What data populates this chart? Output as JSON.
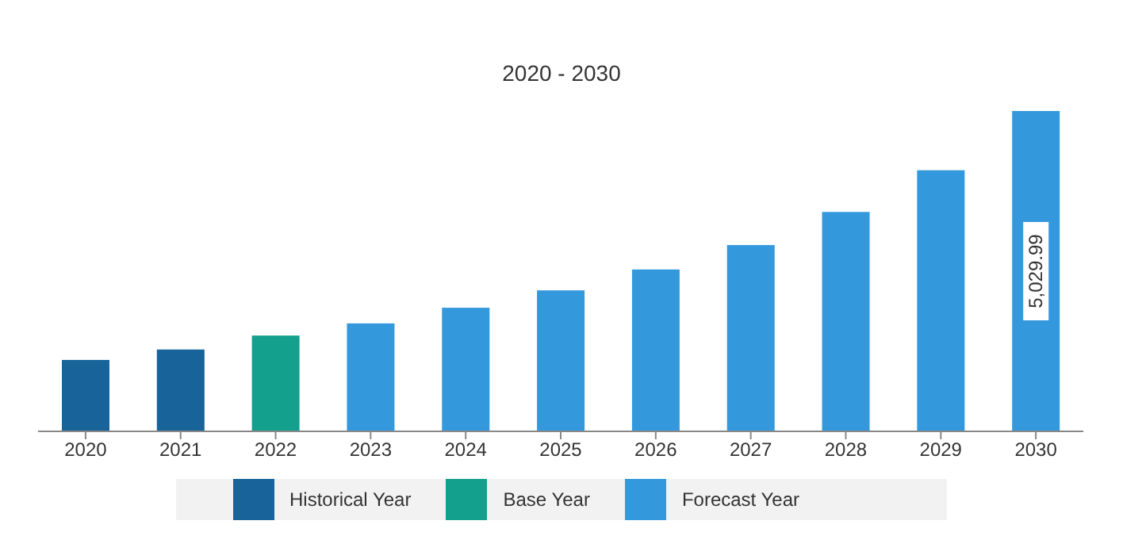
{
  "chart_data": {
    "type": "bar",
    "title": "2020 - 2030",
    "categories": [
      "2020",
      "2021",
      "2022",
      "2023",
      "2024",
      "2025",
      "2026",
      "2027",
      "2028",
      "2029",
      "2030"
    ],
    "stacked": true,
    "legend": "bottom",
    "grid": false,
    "series": [
      {
        "name": "Historical Year",
        "color": "#17639a",
        "values": [
          1121,
          1285,
          null,
          null,
          null,
          null,
          null,
          null,
          null,
          null,
          null
        ]
      },
      {
        "name": "Base Year",
        "color": "#13a08c",
        "values": [
          null,
          null,
          1504,
          null,
          null,
          null,
          null,
          null,
          null,
          null,
          null
        ]
      },
      {
        "name": "Forecast Year",
        "color": "#3499dc",
        "values": [
          null,
          null,
          null,
          1695,
          1941,
          2214,
          2542,
          2925,
          3445,
          4100,
          5029.99
        ],
        "value_labels": [
          null,
          null,
          null,
          null,
          null,
          null,
          null,
          null,
          null,
          null,
          "5,029.99"
        ]
      }
    ]
  }
}
